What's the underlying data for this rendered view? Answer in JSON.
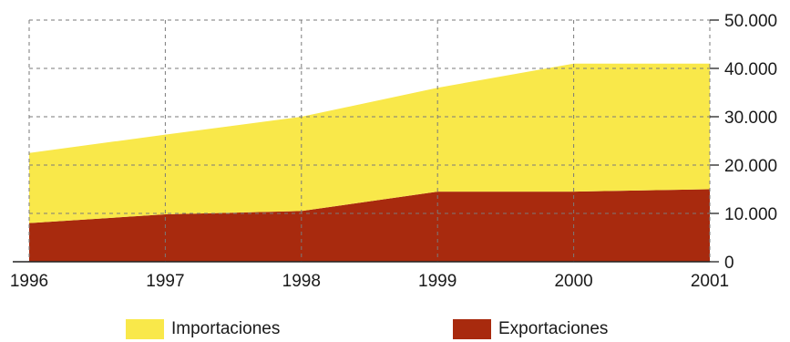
{
  "chart_data": {
    "type": "area",
    "stacked": true,
    "x": [
      "1996",
      "1997",
      "1998",
      "1999",
      "2000",
      "2001"
    ],
    "series": [
      {
        "name": "Exportaciones",
        "color": "#a82a0e",
        "values": [
          8000,
          9800,
          10500,
          14500,
          14500,
          15000
        ]
      },
      {
        "name": "Importaciones",
        "color": "#f9e84a",
        "values": [
          14500,
          16500,
          19500,
          21500,
          26500,
          26000
        ]
      }
    ],
    "y_ticks": [
      "50.000",
      "40.000",
      "30.000",
      "20.000",
      "10.000",
      "0"
    ],
    "ylim": [
      0,
      50000
    ],
    "grid": true,
    "y_axis_side": "right",
    "legend_position": "bottom",
    "title": "",
    "xlabel": "",
    "ylabel": ""
  },
  "legend": {
    "items": [
      {
        "label": "Importaciones",
        "color": "#f9e84a"
      },
      {
        "label": "Exportaciones",
        "color": "#a82a0e"
      }
    ]
  }
}
